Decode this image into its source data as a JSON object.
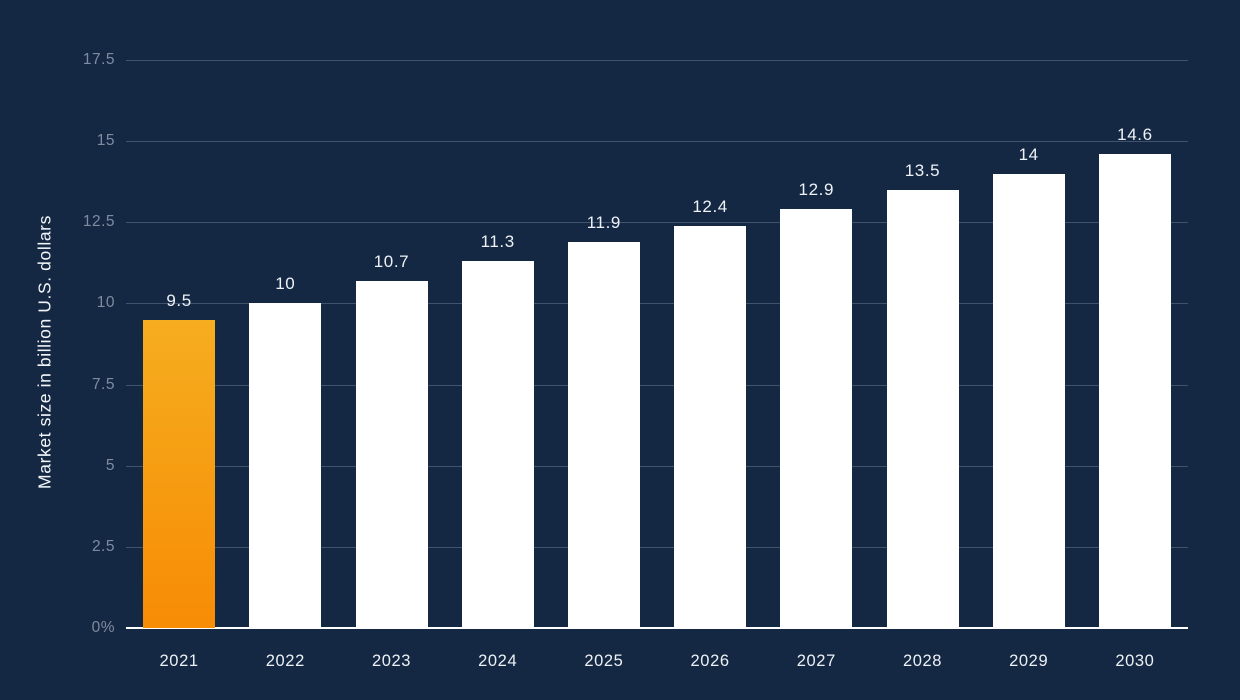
{
  "chart_data": {
    "type": "bar",
    "title": "",
    "xlabel": "",
    "ylabel": "Market size in billion U.S. dollars",
    "categories": [
      "2021",
      "2022",
      "2023",
      "2024",
      "2025",
      "2026",
      "2027",
      "2028",
      "2029",
      "2030"
    ],
    "values": [
      9.5,
      10,
      10.7,
      11.3,
      11.9,
      12.4,
      12.9,
      13.5,
      14,
      14.6
    ],
    "value_labels": [
      "9.5",
      "10",
      "10.7",
      "11.3",
      "11.9",
      "12.4",
      "12.9",
      "13.5",
      "14",
      "14.6"
    ],
    "y_ticks": [
      {
        "value": 17.5,
        "label": "17.5"
      },
      {
        "value": 15,
        "label": "15"
      },
      {
        "value": 12.5,
        "label": "12.5"
      },
      {
        "value": 10,
        "label": "10"
      },
      {
        "value": 7.5,
        "label": "7.5"
      },
      {
        "value": 5,
        "label": "5"
      },
      {
        "value": 2.5,
        "label": "2.5"
      },
      {
        "value": 0,
        "label": "0%"
      }
    ],
    "ylim": [
      0,
      17.5
    ],
    "grid": true,
    "legend": false,
    "highlighted_index": 0,
    "colors": {
      "background": "#152843",
      "bar_default": "#ffffff",
      "bar_highlight_top": "#f6ad1f",
      "bar_highlight_bottom": "#f78c05",
      "gridline": "rgba(180,195,215,0.28)",
      "axis_line": "#ffffff",
      "tick_label": "#7f8ba1",
      "value_label": "#eef2f7",
      "category_label": "#edf1f6",
      "ylabel_color": "#f2f5f9"
    }
  }
}
